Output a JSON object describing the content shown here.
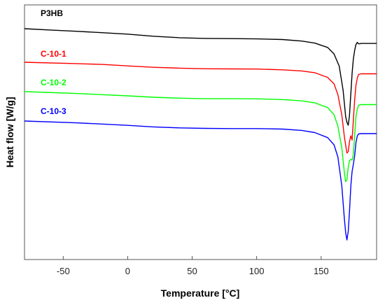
{
  "chart_data": {
    "type": "line",
    "title": "",
    "xlabel": "Temperature [°C]",
    "ylabel": "Heat flow [W/g]",
    "xlim": [
      -80,
      193
    ],
    "xticks": [
      -50,
      0,
      50,
      100,
      150
    ],
    "y_tick_labels": false,
    "grid": false,
    "legend_placement": "inline-left",
    "series": [
      {
        "name": "P3HB",
        "color": "#000000",
        "points": [
          [
            -80,
            0.0
          ],
          [
            -60,
            -0.18
          ],
          [
            -40,
            -0.36
          ],
          [
            -20,
            -0.55
          ],
          [
            0,
            -0.76
          ],
          [
            20,
            -1.05
          ],
          [
            40,
            -1.25
          ],
          [
            60,
            -1.35
          ],
          [
            80,
            -1.38
          ],
          [
            100,
            -1.42
          ],
          [
            120,
            -1.5
          ],
          [
            135,
            -1.72
          ],
          [
            145,
            -2.0
          ],
          [
            155,
            -2.6
          ],
          [
            160,
            -3.5
          ],
          [
            164,
            -5.2
          ],
          [
            167,
            -8.5
          ],
          [
            169,
            -12.2
          ],
          [
            170,
            -13.0
          ],
          [
            171,
            -13.4
          ],
          [
            172,
            -12.0
          ],
          [
            173,
            -9.0
          ],
          [
            174,
            -6.2
          ],
          [
            175,
            -4.2
          ],
          [
            176,
            -3.0
          ],
          [
            177,
            -2.2
          ],
          [
            178,
            -1.9
          ],
          [
            179,
            -2.1
          ],
          [
            180,
            -2.1
          ],
          [
            181,
            -2.05
          ],
          [
            193,
            -2.05
          ]
        ]
      },
      {
        "name": "C-10-1",
        "color": "#ff0000",
        "points": [
          [
            -80,
            0.0
          ],
          [
            -40,
            -0.18
          ],
          [
            -20,
            -0.3
          ],
          [
            0,
            -0.5
          ],
          [
            20,
            -0.7
          ],
          [
            40,
            -0.82
          ],
          [
            60,
            -0.9
          ],
          [
            80,
            -0.92
          ],
          [
            100,
            -0.94
          ],
          [
            120,
            -1.05
          ],
          [
            135,
            -1.2
          ],
          [
            145,
            -1.45
          ],
          [
            155,
            -2.1
          ],
          [
            160,
            -3.0
          ],
          [
            163,
            -4.5
          ],
          [
            166,
            -7.3
          ],
          [
            168,
            -10.3
          ],
          [
            170,
            -12.6
          ],
          [
            171,
            -12.4
          ],
          [
            172,
            -11.0
          ],
          [
            173,
            -10.2
          ],
          [
            174,
            -10.8
          ],
          [
            175,
            -8.0
          ],
          [
            176,
            -5.2
          ],
          [
            177,
            -3.2
          ],
          [
            178,
            -2.2
          ],
          [
            179,
            -1.7
          ],
          [
            181,
            -1.6
          ],
          [
            193,
            -1.6
          ]
        ]
      },
      {
        "name": "C-10-2",
        "color": "#00ff00",
        "points": [
          [
            -80,
            0.0
          ],
          [
            -40,
            -0.25
          ],
          [
            -20,
            -0.42
          ],
          [
            0,
            -0.58
          ],
          [
            20,
            -0.78
          ],
          [
            40,
            -0.9
          ],
          [
            60,
            -0.98
          ],
          [
            80,
            -0.98
          ],
          [
            100,
            -1.0
          ],
          [
            120,
            -1.1
          ],
          [
            135,
            -1.28
          ],
          [
            145,
            -1.55
          ],
          [
            155,
            -2.2
          ],
          [
            160,
            -3.2
          ],
          [
            163,
            -4.8
          ],
          [
            166,
            -7.8
          ],
          [
            168,
            -11.2
          ],
          [
            169,
            -12.5
          ],
          [
            170,
            -12.2
          ],
          [
            171,
            -10.5
          ],
          [
            172,
            -9.6
          ],
          [
            173,
            -9.4
          ],
          [
            174,
            -9.5
          ],
          [
            175,
            -8.7
          ],
          [
            176,
            -6.0
          ],
          [
            177,
            -3.5
          ],
          [
            178,
            -2.4
          ],
          [
            179,
            -1.9
          ],
          [
            181,
            -1.8
          ],
          [
            193,
            -1.8
          ]
        ]
      },
      {
        "name": "C-10-3",
        "color": "#0000ff",
        "points": [
          [
            -80,
            0.0
          ],
          [
            -40,
            -0.25
          ],
          [
            -20,
            -0.42
          ],
          [
            0,
            -0.6
          ],
          [
            20,
            -0.82
          ],
          [
            40,
            -0.95
          ],
          [
            60,
            -1.02
          ],
          [
            80,
            -1.05
          ],
          [
            100,
            -1.05
          ],
          [
            120,
            -1.12
          ],
          [
            135,
            -1.3
          ],
          [
            145,
            -1.6
          ],
          [
            155,
            -2.3
          ],
          [
            160,
            -3.3
          ],
          [
            163,
            -5.0
          ],
          [
            166,
            -9.0
          ],
          [
            168,
            -13.5
          ],
          [
            169,
            -15.5
          ],
          [
            170,
            -16.5
          ],
          [
            171,
            -15.3
          ],
          [
            172,
            -12.5
          ],
          [
            173,
            -9.0
          ],
          [
            174,
            -7.0
          ],
          [
            175,
            -6.0
          ],
          [
            176,
            -4.8
          ],
          [
            177,
            -3.0
          ],
          [
            178,
            -2.1
          ],
          [
            179,
            -1.8
          ],
          [
            181,
            -1.75
          ],
          [
            193,
            -1.75
          ]
        ]
      }
    ]
  }
}
